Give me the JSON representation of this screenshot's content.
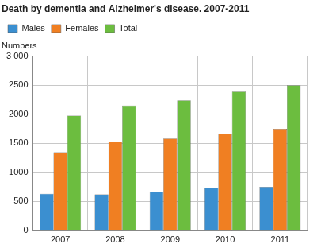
{
  "chart_data": {
    "type": "bar",
    "title": "Death by dementia and Alzheimer's disease. 2007-2011",
    "y_label": "Numbers",
    "categories": [
      "2007",
      "2008",
      "2009",
      "2010",
      "2011"
    ],
    "series": [
      {
        "name": "Males",
        "color": "#3b8fd0",
        "values": [
          630,
          620,
          660,
          730,
          750
        ]
      },
      {
        "name": "Females",
        "color": "#f07f22",
        "values": [
          1345,
          1525,
          1580,
          1660,
          1750
        ]
      },
      {
        "name": "Total",
        "color": "#6cbd3f",
        "values": [
          1975,
          2150,
          2240,
          2390,
          2500
        ]
      }
    ],
    "ylim": [
      0,
      3000
    ],
    "yticks": [
      0,
      500,
      1000,
      1500,
      2000,
      2500,
      {
        "value": 3000,
        "label": "3 000"
      }
    ],
    "grid": true,
    "legend": "upper left"
  }
}
